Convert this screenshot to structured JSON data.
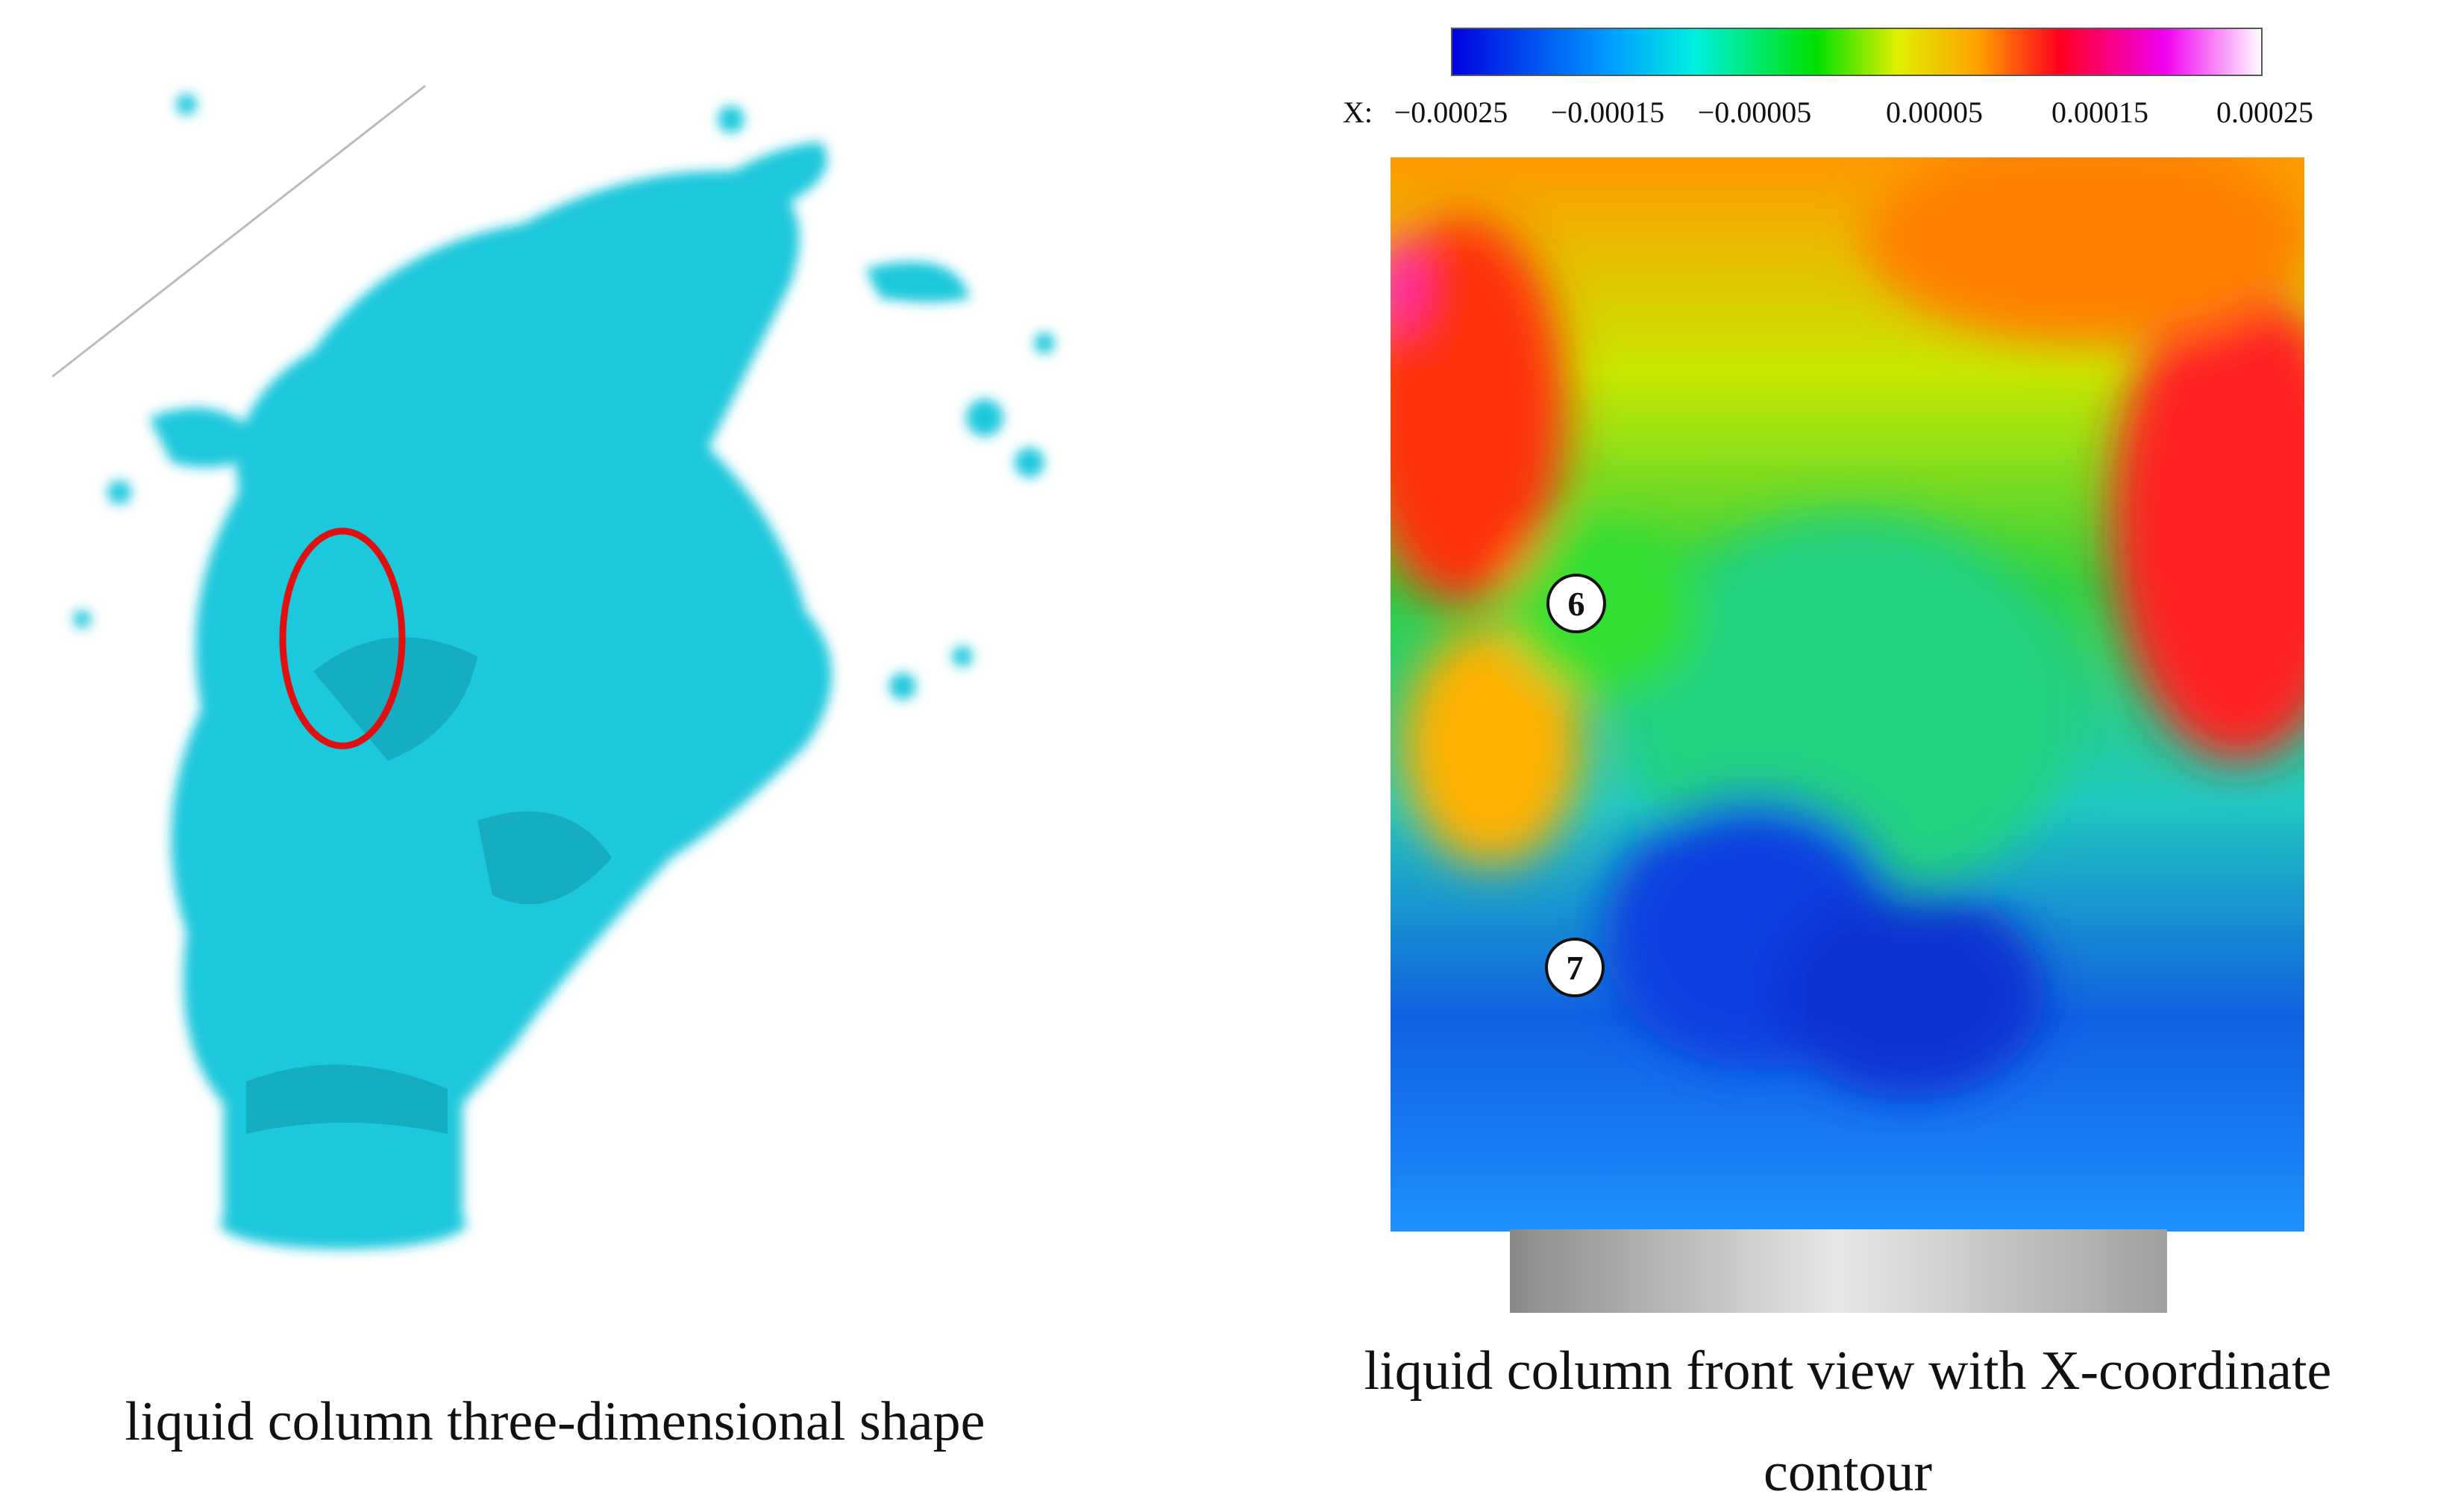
{
  "left_panel": {
    "caption": "liquid column three-dimensional shape"
  },
  "right_panel": {
    "colorbar": {
      "axis_label": "X:",
      "tick_labels": [
        "−0.00025",
        "−0.00015",
        "−0.00005",
        "0.00005",
        "0.00015",
        "0.00025"
      ]
    },
    "markers": [
      "6",
      "7"
    ],
    "caption": [
      "liquid column front view with X-coordinate",
      "contour"
    ]
  }
}
